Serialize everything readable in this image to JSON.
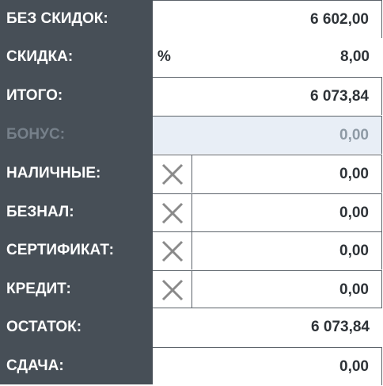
{
  "rows": {
    "no_discount": {
      "label": "БЕЗ СКИДОК:",
      "value": "6 602,00"
    },
    "discount": {
      "label": "СКИДКА:",
      "unit": "%",
      "value": "8,00"
    },
    "total": {
      "label": "ИТОГО:",
      "value": "6 073,84"
    },
    "bonus": {
      "label": "БОНУС:",
      "value": "0,00"
    },
    "cash": {
      "label": "НАЛИЧНЫЕ:",
      "value": "0,00",
      "icon": "close-icon"
    },
    "cashless": {
      "label": "БЕЗНАЛ:",
      "value": "0,00",
      "icon": "close-icon"
    },
    "certificate": {
      "label": "СЕРТИФИКАТ:",
      "value": "0,00",
      "icon": "close-icon"
    },
    "credit": {
      "label": "КРЕДИТ:",
      "value": "0,00",
      "icon": "close-icon"
    },
    "remainder": {
      "label": "ОСТАТОК:",
      "value": "6 073,84"
    },
    "change": {
      "label": "СДАЧА:",
      "value": "0,00"
    }
  },
  "colors": {
    "sidebar": "#474f57",
    "label": "#ffffff",
    "label_muted": "#76808a",
    "bonus_bg": "#e8eef6",
    "value": "#2e3338",
    "value_muted": "#8e9aa5",
    "icon": "#8a8a8a"
  }
}
